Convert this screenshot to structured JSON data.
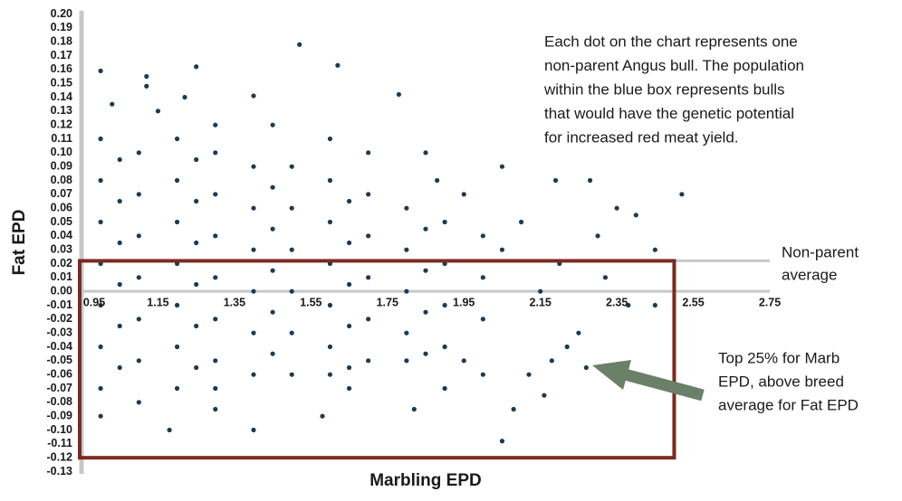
{
  "chart_data": {
    "type": "scatter",
    "annotation": [
      "Each dot on the chart represents one",
      "non-parent Angus bull. The population",
      "within the blue box represents bulls",
      "that would have the genetic potential",
      "for increased red meat yield."
    ],
    "average_label": [
      "Non-parent",
      "average"
    ],
    "box_label": [
      "Top 25% for Marb",
      "EPD, above breed",
      "average for Fat EPD"
    ],
    "xlabel": "Marbling EPD",
    "ylabel": "Fat EPD",
    "xlim": [
      0.95,
      2.75
    ],
    "ylim": [
      -0.13,
      0.2
    ],
    "xticks": [
      0.95,
      1.15,
      1.35,
      1.55,
      1.75,
      1.95,
      2.15,
      2.35,
      2.55,
      2.75
    ],
    "yticks": [
      {
        "value": 0.2,
        "label": "0.20"
      },
      0.19,
      0.18,
      0.17,
      0.16,
      0.15,
      0.14,
      0.13,
      0.12,
      0.11,
      {
        "value": 0.1,
        "label": "0.10"
      },
      0.09,
      0.08,
      0.07,
      0.06,
      0.05,
      0.04,
      0.03,
      0.02,
      0.01,
      {
        "value": 0,
        "label": "0.00"
      },
      -0.01,
      -0.02,
      -0.03,
      -0.04,
      -0.05,
      -0.06,
      -0.07,
      -0.08,
      -0.09,
      {
        "value": -0.1,
        "label": "-0.10"
      },
      -0.11,
      -0.12,
      -0.13
    ],
    "average_line": 0.022,
    "box": {
      "xlim": [
        0.95,
        2.5
      ],
      "ylim": [
        -0.12,
        0.022
      ],
      "color": "#7b2a22"
    },
    "arrow_color": "#6b8068",
    "color": "#1e3a52",
    "x": [
      1.52,
      1.62,
      1.25,
      1.0,
      1.12,
      1.12,
      1.4,
      1.22,
      1.78,
      1.03,
      2.52,
      2.28,
      2.05,
      2.19,
      2.35,
      2.4,
      2.1,
      2.3,
      2.45,
      2.2,
      2.32,
      2.38,
      2.45,
      2.25,
      2.27,
      2.22,
      2.18,
      2.12,
      2.16,
      2.08,
      2.05,
      1.82,
      1.58,
      1.4,
      1.18,
      1.0,
      1.3,
      1.65,
      1.9,
      2.0,
      1.95,
      2.15,
      2.05,
      1.95,
      1.88,
      1.85,
      1.7,
      1.6,
      1.45,
      1.3,
      1.15,
      1.0,
      1.0,
      1.0,
      1.0,
      1.0,
      1.0,
      1.0,
      1.1,
      1.1,
      1.1,
      1.1,
      1.1,
      1.1,
      1.1,
      1.2,
      1.2,
      1.2,
      1.2,
      1.2,
      1.2,
      1.2,
      1.3,
      1.3,
      1.3,
      1.3,
      1.3,
      1.3,
      1.3,
      1.4,
      1.4,
      1.4,
      1.4,
      1.4,
      1.4,
      1.5,
      1.5,
      1.5,
      1.5,
      1.5,
      1.5,
      1.6,
      1.6,
      1.6,
      1.6,
      1.6,
      1.6,
      1.7,
      1.7,
      1.7,
      1.7,
      1.7,
      1.8,
      1.8,
      1.8,
      1.8,
      1.8,
      1.9,
      1.9,
      1.9,
      1.9,
      2.0,
      2.0,
      2.0,
      1.05,
      1.05,
      1.05,
      1.05,
      1.05,
      1.05,
      1.25,
      1.25,
      1.25,
      1.25,
      1.25,
      1.25,
      1.45,
      1.45,
      1.45,
      1.45,
      1.45,
      1.65,
      1.65,
      1.65,
      1.65,
      1.65,
      1.85,
      1.85,
      1.85,
      1.85
    ],
    "y": [
      0.178,
      0.163,
      0.162,
      0.159,
      0.155,
      0.148,
      0.141,
      0.14,
      0.142,
      0.135,
      0.07,
      0.08,
      0.09,
      0.08,
      0.06,
      0.055,
      0.05,
      0.04,
      0.03,
      0.02,
      0.01,
      -0.01,
      -0.01,
      -0.03,
      -0.055,
      -0.04,
      -0.05,
      -0.06,
      -0.075,
      -0.085,
      -0.108,
      -0.085,
      -0.09,
      -0.1,
      -0.1,
      -0.09,
      -0.085,
      -0.07,
      -0.07,
      -0.06,
      -0.05,
      0,
      0.03,
      0.07,
      0.08,
      0.1,
      0.1,
      0.11,
      0.12,
      0.12,
      0.13,
      0.11,
      0.08,
      0.05,
      0.02,
      -0.01,
      -0.04,
      -0.07,
      0.1,
      0.07,
      0.04,
      0.01,
      -0.02,
      -0.05,
      -0.08,
      0.11,
      0.08,
      0.05,
      0.02,
      -0.01,
      -0.04,
      -0.07,
      0.1,
      0.07,
      0.04,
      0.01,
      -0.02,
      -0.05,
      -0.07,
      0.09,
      0.06,
      0.03,
      0,
      -0.03,
      -0.06,
      0.09,
      0.06,
      0.03,
      0,
      -0.03,
      -0.06,
      0.08,
      0.05,
      0.02,
      -0.01,
      -0.04,
      -0.06,
      0.07,
      0.04,
      0.01,
      -0.02,
      -0.05,
      0.06,
      0.03,
      0,
      -0.03,
      -0.05,
      0.05,
      0.02,
      -0.01,
      -0.04,
      0.04,
      0.01,
      -0.02,
      0.095,
      0.065,
      0.035,
      0.005,
      -0.025,
      -0.055,
      0.095,
      0.065,
      0.035,
      0.005,
      -0.025,
      -0.055,
      0.075,
      0.045,
      0.015,
      -0.015,
      -0.045,
      0.065,
      0.035,
      0.005,
      -0.025,
      -0.055,
      0.045,
      0.015,
      -0.015,
      -0.045
    ]
  }
}
